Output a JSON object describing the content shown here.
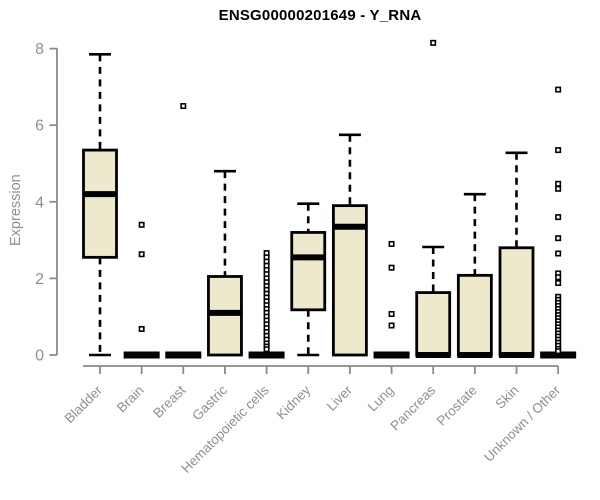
{
  "chart_data": {
    "type": "boxplot",
    "title": "ENSG00000201649 - Y_RNA",
    "ylabel": "Expression",
    "xlabel": "",
    "ylim": [
      0,
      8
    ],
    "yticks": [
      0,
      2,
      4,
      6,
      8
    ],
    "grid": false,
    "legend": null,
    "categories": [
      "Bladder",
      "Brain",
      "Breast",
      "Gastric",
      "Hematopoietic cells",
      "Kidney",
      "Liver",
      "Lung",
      "Pancreas",
      "Prostate",
      "Skin",
      "Unknown / Other"
    ],
    "boxes": [
      {
        "category": "Bladder",
        "min": 0,
        "q1": 2.55,
        "median": 4.2,
        "q3": 5.35,
        "max": 7.85,
        "outliers": []
      },
      {
        "category": "Brain",
        "min": 0,
        "q1": 0,
        "median": 0,
        "q3": 0,
        "max": 0,
        "outliers": [
          3.4,
          2.63,
          0.68
        ]
      },
      {
        "category": "Breast",
        "min": 0,
        "q1": 0,
        "median": 0,
        "q3": 0,
        "max": 0,
        "outliers": [
          6.5
        ]
      },
      {
        "category": "Gastric",
        "min": 0,
        "q1": 0,
        "median": 1.1,
        "q3": 2.05,
        "max": 4.8,
        "outliers": []
      },
      {
        "category": "Hematopoietic cells",
        "min": 0,
        "q1": 0,
        "median": 0,
        "q3": 0,
        "max": 0,
        "outliers": [
          2.66,
          2.55,
          2.44,
          2.33,
          2.22,
          2.11,
          2.0,
          1.9,
          1.8,
          1.7,
          1.6,
          1.5,
          1.4,
          1.3,
          1.2,
          1.1,
          1.0,
          0.9,
          0.8,
          0.7,
          0.6,
          0.5,
          0.4,
          0.3,
          0.22,
          0.15
        ]
      },
      {
        "category": "Kidney",
        "min": 0,
        "q1": 1.18,
        "median": 2.55,
        "q3": 3.2,
        "max": 3.95,
        "outliers": []
      },
      {
        "category": "Liver",
        "min": 0,
        "q1": 0,
        "median": 3.35,
        "q3": 3.9,
        "max": 5.75,
        "outliers": []
      },
      {
        "category": "Lung",
        "min": 0,
        "q1": 0,
        "median": 0,
        "q3": 0,
        "max": 0,
        "outliers": [
          2.9,
          2.28,
          1.07,
          0.77
        ]
      },
      {
        "category": "Pancreas",
        "min": 0,
        "q1": 0,
        "median": 0,
        "q3": 1.63,
        "max": 2.82,
        "outliers": [
          8.15
        ]
      },
      {
        "category": "Prostate",
        "min": 0,
        "q1": 0,
        "median": 0,
        "q3": 2.08,
        "max": 4.2,
        "outliers": []
      },
      {
        "category": "Skin",
        "min": 0,
        "q1": 0,
        "median": 0,
        "q3": 2.8,
        "max": 5.28,
        "outliers": []
      },
      {
        "category": "Unknown / Other",
        "min": 0,
        "q1": 0,
        "median": 0,
        "q3": 0,
        "max": 0,
        "outliers": [
          6.93,
          5.35,
          4.47,
          4.34,
          3.6,
          3.05,
          2.65,
          2.13,
          2.03,
          1.88,
          1.52,
          1.44,
          1.36,
          1.28,
          1.2,
          1.12,
          1.04,
          0.96,
          0.88,
          0.8,
          0.72,
          0.64,
          0.56,
          0.48,
          0.4,
          0.32,
          0.24,
          0.16,
          0.1
        ]
      }
    ],
    "colors": {
      "box_fill": "#EEE8CD",
      "line": "#000000",
      "axis": "#8A8A8A",
      "tick_text": "#8C9196",
      "title_text": "#000000",
      "background": "#FFFFFF"
    }
  }
}
